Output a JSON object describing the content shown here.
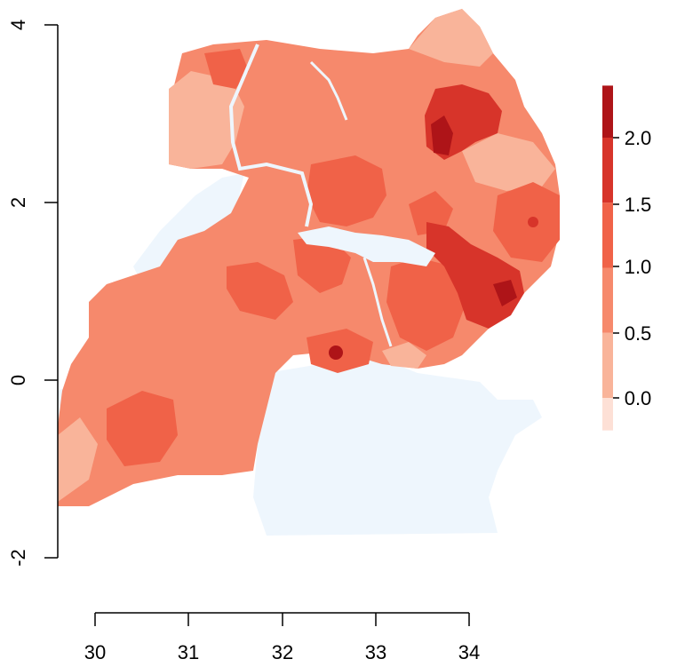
{
  "chart_data": {
    "type": "heatmap",
    "region": "Uganda",
    "x_axis": {
      "ticks": [
        "30",
        "31",
        "32",
        "33",
        "34"
      ],
      "range": [
        30,
        34
      ]
    },
    "y_axis": {
      "ticks": [
        "4",
        "2",
        "0",
        "-2"
      ],
      "range": [
        -2,
        4
      ]
    },
    "legend": {
      "placement": "right",
      "labels": [
        "2.0",
        "1.5",
        "1.0",
        "0.5",
        "0.0"
      ],
      "bins": [
        {
          "from": -0.25,
          "to": 0.0,
          "color": "#fde0d6"
        },
        {
          "from": 0.0,
          "to": 0.5,
          "color": "#f9b49a"
        },
        {
          "from": 0.5,
          "to": 1.0,
          "color": "#f6896c"
        },
        {
          "from": 1.0,
          "to": 1.5,
          "color": "#f06248"
        },
        {
          "from": 1.5,
          "to": 2.0,
          "color": "#d7342a"
        },
        {
          "from": 2.0,
          "to": 2.4,
          "color": "#ae1418"
        }
      ]
    },
    "water_color": "#eef6fd"
  }
}
